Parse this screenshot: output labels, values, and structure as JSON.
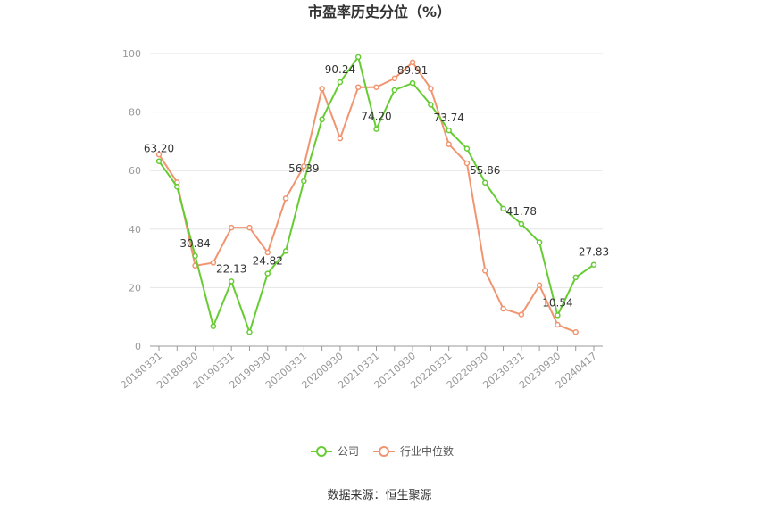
{
  "chart_data": {
    "type": "line",
    "title": "市盈率历史分位（%）",
    "source": "数据来源：恒生聚源",
    "ylim": [
      0,
      100
    ],
    "yticks": [
      "0",
      "20",
      "40",
      "60",
      "80",
      "100"
    ],
    "x": [
      "20180331",
      "20180630",
      "20180930",
      "20181231",
      "20190331",
      "20190630",
      "20190930",
      "20191231",
      "20200331",
      "20200630",
      "20200930",
      "20201231",
      "20210331",
      "20210630",
      "20210930",
      "20211231",
      "20220331",
      "20220630",
      "20220930",
      "20221231",
      "20230331",
      "20230630",
      "20230930",
      "20231231",
      "20240417"
    ],
    "xticks": [
      "20180331",
      "20180930",
      "20190331",
      "20190930",
      "20200331",
      "20200930",
      "20210331",
      "20210930",
      "20220331",
      "20220930",
      "20230331",
      "20230930",
      "20240417"
    ],
    "grid": true,
    "legend_position": "bottom-center",
    "series": [
      {
        "name": "公司",
        "color": "#66cc33",
        "values": [
          63.2,
          54.5,
          30.84,
          6.8,
          22.13,
          4.8,
          24.82,
          32.5,
          56.39,
          77.5,
          90.24,
          98.8,
          74.2,
          87.5,
          89.91,
          82.5,
          73.74,
          67.5,
          55.86,
          47.0,
          41.78,
          35.5,
          10.54,
          23.5,
          27.83
        ]
      },
      {
        "name": "行业中位数",
        "color": "#f19470",
        "values": [
          65.5,
          56.0,
          27.5,
          28.5,
          40.5,
          40.5,
          32.0,
          50.5,
          61.5,
          88.0,
          71.0,
          88.5,
          88.5,
          91.5,
          97.0,
          88.0,
          69.0,
          62.5,
          25.8,
          12.8,
          10.8,
          20.8,
          7.3,
          4.8,
          null
        ]
      }
    ],
    "data_labels": [
      {
        "series": 0,
        "index": 0,
        "text": "63.20"
      },
      {
        "series": 0,
        "index": 2,
        "text": "30.84"
      },
      {
        "series": 0,
        "index": 4,
        "text": "22.13"
      },
      {
        "series": 0,
        "index": 6,
        "text": "24.82"
      },
      {
        "series": 0,
        "index": 8,
        "text": "56.39"
      },
      {
        "series": 0,
        "index": 10,
        "text": "90.24"
      },
      {
        "series": 0,
        "index": 12,
        "text": "74.20"
      },
      {
        "series": 0,
        "index": 14,
        "text": "89.91"
      },
      {
        "series": 0,
        "index": 16,
        "text": "73.74"
      },
      {
        "series": 0,
        "index": 18,
        "text": "55.86"
      },
      {
        "series": 0,
        "index": 20,
        "text": "41.78"
      },
      {
        "series": 0,
        "index": 22,
        "text": "10.54"
      },
      {
        "series": 0,
        "index": 24,
        "text": "27.83"
      }
    ]
  }
}
